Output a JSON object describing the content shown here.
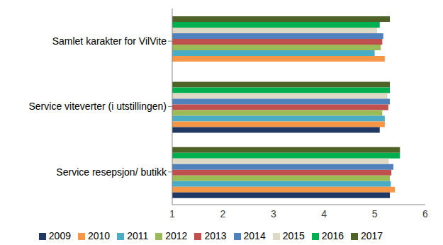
{
  "chart_data": {
    "type": "bar",
    "orientation": "horizontal",
    "categories": [
      "Samlet karakter for VilVite",
      "Service viteverter (i utstillingen)",
      "Service resepsjon/ butikk"
    ],
    "series": [
      {
        "name": "2017",
        "color": "#4f6228",
        "values": [
          5.3,
          5.3,
          5.5
        ]
      },
      {
        "name": "2016",
        "color": "#00b050",
        "values": [
          5.1,
          5.3,
          5.5
        ]
      },
      {
        "name": "2015",
        "color": "#ddd9c4",
        "values": [
          5.05,
          5.25,
          5.28
        ]
      },
      {
        "name": "2014",
        "color": "#4f81bd",
        "values": [
          5.17,
          5.3,
          5.37
        ]
      },
      {
        "name": "2013",
        "color": "#c0504d",
        "values": [
          5.15,
          5.27,
          5.33
        ]
      },
      {
        "name": "2012",
        "color": "#9bbb59",
        "values": [
          5.12,
          5.15,
          5.3
        ]
      },
      {
        "name": "2011",
        "color": "#4bacc6",
        "values": [
          5.0,
          5.2,
          5.32
        ]
      },
      {
        "name": "2010",
        "color": "#f79646",
        "values": [
          5.2,
          5.2,
          5.4
        ]
      },
      {
        "name": "2009",
        "color": "#1f3864",
        "values": [
          null,
          5.1,
          5.3
        ]
      }
    ],
    "xlim": [
      1,
      6
    ],
    "xticks": [
      1,
      2,
      3,
      4,
      5,
      6
    ],
    "grid": false,
    "legend": "bottom"
  }
}
